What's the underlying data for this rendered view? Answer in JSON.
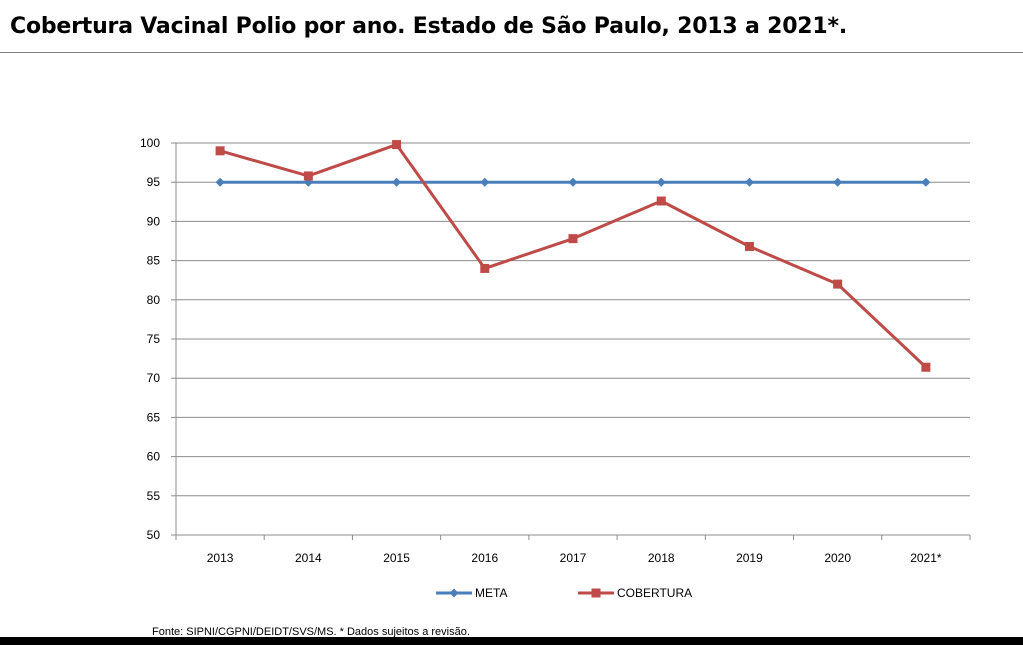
{
  "page": {
    "title": "Cobertura Vacinal Polio por ano. Estado de São Paulo, 2013 a 2021*.",
    "source": "Fonte: SIPNI/CGPNI/DEIDT/SVS/MS. * Dados sujeitos a revisão."
  },
  "chart_data": {
    "type": "line",
    "title": "Cobertura Vacinal Polio por ano. Estado de São Paulo, 2013 a 2021*.",
    "xlabel": "",
    "ylabel": "",
    "categories": [
      "2013",
      "2014",
      "2015",
      "2016",
      "2017",
      "2018",
      "2019",
      "2020",
      "2021*"
    ],
    "ylim": [
      50,
      100
    ],
    "yticks": [
      50,
      55,
      60,
      65,
      70,
      75,
      80,
      85,
      90,
      95,
      100
    ],
    "grid": true,
    "legend_position": "bottom",
    "series": [
      {
        "name": "META",
        "color": "#4a7ebb",
        "marker": "diamond",
        "values": [
          95,
          95,
          95,
          95,
          95,
          95,
          95,
          95,
          95
        ]
      },
      {
        "name": "COBERTURA",
        "color": "#be4b48",
        "marker": "square",
        "values": [
          99.0,
          95.8,
          99.8,
          84.0,
          87.8,
          92.6,
          86.8,
          82.0,
          71.4
        ]
      }
    ]
  }
}
